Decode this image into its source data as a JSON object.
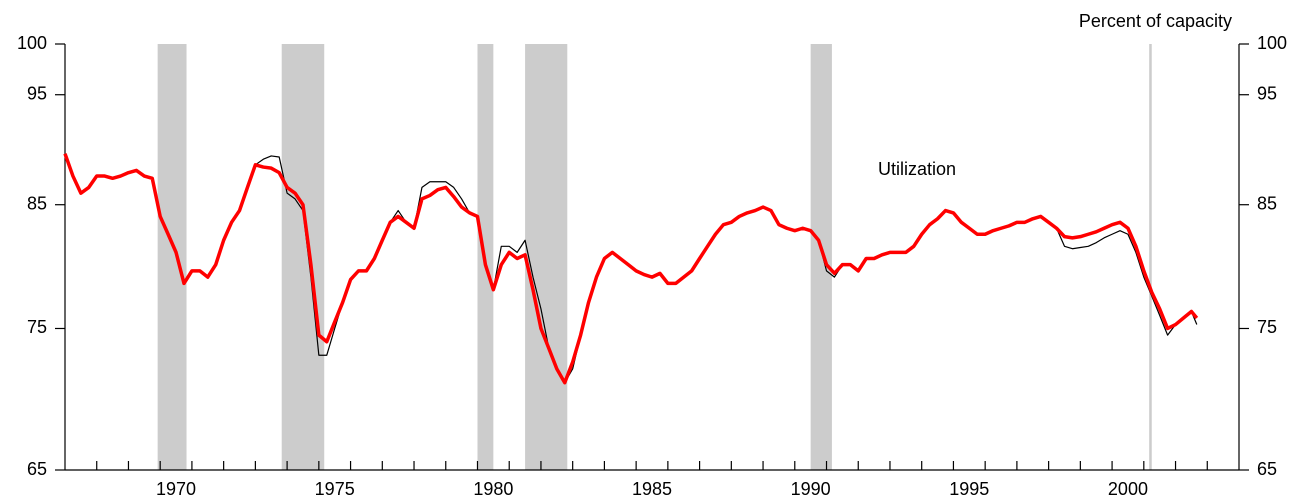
{
  "chart_data": {
    "type": "line",
    "title": "Percent of capacity",
    "annotation": "Utilization",
    "log_scale": true,
    "xlim": [
      1967,
      2004
    ],
    "xticks": [
      {
        "value": 1970.5,
        "label": "1970"
      },
      {
        "value": 1975.5,
        "label": "1975"
      },
      {
        "value": 1980.5,
        "label": "1980"
      },
      {
        "value": 1985.5,
        "label": "1985"
      },
      {
        "value": 1990.5,
        "label": "1990"
      },
      {
        "value": 1995.5,
        "label": "1995"
      },
      {
        "value": 2000.5,
        "label": "2000"
      }
    ],
    "minor_xticks": [
      1968,
      1969,
      1970,
      1971,
      1972,
      1973,
      1974,
      1975,
      1976,
      1977,
      1978,
      1979,
      1980,
      1981,
      1982,
      1983,
      1984,
      1985,
      1986,
      1987,
      1988,
      1989,
      1990,
      1991,
      1992,
      1993,
      1994,
      1995,
      1996,
      1997,
      1998,
      1999,
      2000,
      2001,
      2002,
      2003
    ],
    "ylim": [
      65,
      100
    ],
    "yticks": [
      65,
      75,
      85,
      95,
      100
    ],
    "recessions": [
      [
        1969.92,
        1970.83
      ],
      [
        1973.83,
        1975.17
      ],
      [
        1980.0,
        1980.5
      ],
      [
        1981.5,
        1982.83
      ],
      [
        1990.5,
        1991.17
      ],
      [
        2001.17,
        2001.25
      ]
    ],
    "recession_color": "#cccccc",
    "x": [
      1967,
      1967.25,
      1967.5,
      1967.75,
      1968,
      1968.25,
      1968.5,
      1968.75,
      1969,
      1969.25,
      1969.5,
      1969.75,
      1970,
      1970.25,
      1970.5,
      1970.75,
      1971,
      1971.25,
      1971.5,
      1971.75,
      1972,
      1972.25,
      1972.5,
      1972.75,
      1973,
      1973.25,
      1973.5,
      1973.75,
      1974,
      1974.25,
      1974.5,
      1974.75,
      1975,
      1975.25,
      1975.5,
      1975.75,
      1976,
      1976.25,
      1976.5,
      1976.75,
      1977,
      1977.25,
      1977.5,
      1977.75,
      1978,
      1978.25,
      1978.5,
      1978.75,
      1979,
      1979.25,
      1979.5,
      1979.75,
      1980,
      1980.25,
      1980.5,
      1980.75,
      1981,
      1981.25,
      1981.5,
      1981.75,
      1982,
      1982.25,
      1982.5,
      1982.75,
      1983,
      1983.25,
      1983.5,
      1983.75,
      1984,
      1984.25,
      1984.5,
      1984.75,
      1985,
      1985.25,
      1985.5,
      1985.75,
      1986,
      1986.25,
      1986.5,
      1986.75,
      1987,
      1987.25,
      1987.5,
      1987.75,
      1988,
      1988.25,
      1988.5,
      1988.75,
      1989,
      1989.25,
      1989.5,
      1989.75,
      1990,
      1990.25,
      1990.5,
      1990.75,
      1991,
      1991.25,
      1991.5,
      1991.75,
      1992,
      1992.25,
      1992.5,
      1992.75,
      1993,
      1993.25,
      1993.5,
      1993.75,
      1994,
      1994.25,
      1994.5,
      1994.75,
      1995,
      1995.25,
      1995.5,
      1995.75,
      1996,
      1996.25,
      1996.5,
      1996.75,
      1997,
      1997.25,
      1997.5,
      1997.75,
      1998,
      1998.25,
      1998.5,
      1998.75,
      1999,
      1999.25,
      1999.5,
      1999.75,
      2000,
      2000.25,
      2000.5,
      2000.75,
      2001,
      2001.25,
      2001.5,
      2001.75,
      2002,
      2002.25,
      2002.5,
      2002.67
    ],
    "series": [
      {
        "color": "#000000",
        "width": 1.2,
        "values": [
          89.5,
          87.5,
          86,
          86.5,
          87.5,
          87.5,
          87.3,
          87.5,
          87.8,
          88,
          87.5,
          87.3,
          84,
          82.5,
          81,
          78.5,
          79.5,
          79.5,
          79,
          80,
          82,
          83.5,
          84.5,
          86.5,
          88.5,
          89,
          89.3,
          89.2,
          86,
          85.5,
          84.5,
          79,
          73,
          73,
          75,
          77,
          78.8,
          79.5,
          79.5,
          80.5,
          82,
          83.5,
          84.5,
          83.5,
          83,
          86.5,
          87,
          87,
          87,
          86.5,
          85.5,
          84.3,
          84,
          80,
          78,
          81.5,
          81.5,
          81,
          82,
          79,
          76.5,
          73.5,
          72,
          71,
          72,
          74.5,
          77,
          79,
          80.5,
          81,
          80.5,
          80,
          79.5,
          79.2,
          79,
          79.3,
          78.5,
          78.5,
          79,
          79.5,
          80.5,
          81.5,
          82.5,
          83.3,
          83.5,
          84,
          84.3,
          84.5,
          84.8,
          84.5,
          83.3,
          83,
          82.8,
          83,
          82.8,
          82,
          79.5,
          79,
          80,
          80,
          79.5,
          80.5,
          80.5,
          80.8,
          81,
          81,
          81,
          81.5,
          82.5,
          83.3,
          83.8,
          84.5,
          84.3,
          83.5,
          83,
          82.5,
          82.5,
          82.8,
          83,
          83.2,
          83.5,
          83.5,
          83.8,
          84,
          83.5,
          83,
          81.5,
          81.3,
          81.4,
          81.5,
          81.8,
          82.2,
          82.5,
          82.8,
          82.5,
          81,
          79,
          77.5,
          76,
          74.5,
          75.3,
          75.8,
          76.3,
          75.3
        ]
      },
      {
        "color": "#ff0000",
        "width": 3.5,
        "values": [
          89.5,
          87.5,
          86,
          86.5,
          87.5,
          87.5,
          87.3,
          87.5,
          87.8,
          88,
          87.5,
          87.3,
          84,
          82.5,
          81,
          78.5,
          79.5,
          79.5,
          79,
          80,
          82,
          83.5,
          84.5,
          86.5,
          88.5,
          88.3,
          88.2,
          87.8,
          86.5,
          86,
          85,
          80,
          74.5,
          74,
          75.5,
          77,
          78.8,
          79.5,
          79.5,
          80.5,
          82,
          83.5,
          84,
          83.5,
          83,
          85.5,
          85.8,
          86.3,
          86.5,
          85.7,
          84.8,
          84.3,
          84,
          80,
          78,
          80,
          81,
          80.5,
          80.8,
          78,
          75,
          73.5,
          72,
          71,
          72.5,
          74.5,
          77,
          79,
          80.5,
          81,
          80.5,
          80,
          79.5,
          79.2,
          79,
          79.3,
          78.5,
          78.5,
          79,
          79.5,
          80.5,
          81.5,
          82.5,
          83.3,
          83.5,
          84,
          84.3,
          84.5,
          84.8,
          84.5,
          83.3,
          83,
          82.8,
          83,
          82.8,
          82,
          80,
          79.3,
          80,
          80,
          79.5,
          80.5,
          80.5,
          80.8,
          81,
          81,
          81,
          81.5,
          82.5,
          83.3,
          83.8,
          84.5,
          84.3,
          83.5,
          83,
          82.5,
          82.5,
          82.8,
          83,
          83.2,
          83.5,
          83.5,
          83.8,
          84,
          83.5,
          83,
          82.3,
          82.2,
          82.3,
          82.5,
          82.7,
          83,
          83.3,
          83.5,
          83,
          81.5,
          79.5,
          77.8,
          76.5,
          75,
          75.3,
          75.8,
          76.3,
          75.8
        ]
      }
    ]
  }
}
